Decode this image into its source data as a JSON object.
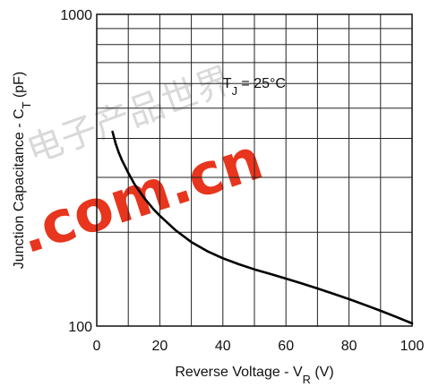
{
  "chart_data": {
    "type": "line",
    "xlabel": "Reverse Voltage - V_R (V)",
    "ylabel": "Junction Capacitance - C_T (pF)",
    "xlim": [
      0,
      100
    ],
    "ylim": [
      100,
      1000
    ],
    "y_scale": "log",
    "grid": true,
    "x_ticks": [
      "0",
      "20",
      "40",
      "60",
      "80",
      "100"
    ],
    "y_ticks": [
      "100",
      "1000"
    ],
    "annotations": [
      {
        "text": "T_J = 25°C",
        "x": 40,
        "y": 600
      }
    ],
    "series": [
      {
        "x": [
          5,
          6,
          7,
          8,
          10,
          12,
          15,
          18,
          20,
          25,
          30,
          35,
          40,
          45,
          50,
          55,
          60,
          65,
          70,
          75,
          80,
          85,
          90,
          95,
          100
        ],
        "values": [
          420,
          385,
          360,
          340,
          310,
          285,
          258,
          237,
          226,
          203,
          186,
          174,
          165,
          158,
          152,
          147,
          142,
          137,
          132,
          127,
          122,
          117,
          112,
          107,
          102
        ]
      }
    ]
  },
  "watermark": {
    "text": ".com.cn",
    "cjk": "电子产品世界",
    "color": "#e8351e"
  }
}
